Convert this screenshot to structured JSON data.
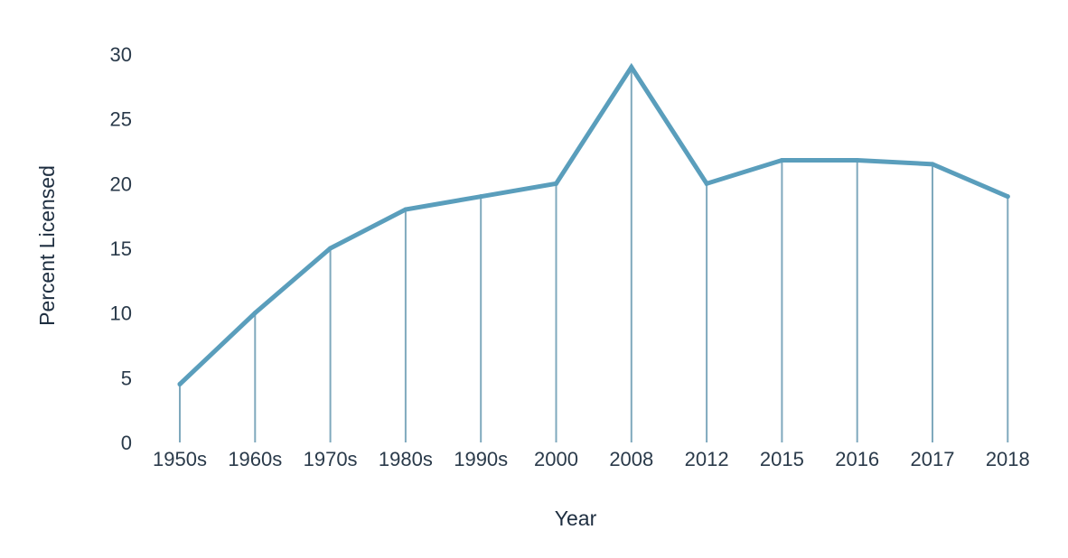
{
  "chart_data": {
    "type": "line",
    "title": "",
    "xlabel": "Year",
    "ylabel": "Percent Licensed",
    "ylim": [
      0,
      30
    ],
    "yticks": [
      0,
      5,
      10,
      15,
      20,
      25,
      30
    ],
    "categories": [
      "1950s",
      "1960s",
      "1970s",
      "1980s",
      "1990s",
      "2000",
      "2008",
      "2012",
      "2015",
      "2016",
      "2017",
      "2018"
    ],
    "series": [
      {
        "values": [
          4.5,
          10,
          15,
          18,
          19,
          20,
          29,
          20,
          21.8,
          21.8,
          21.5,
          19
        ]
      }
    ],
    "drop_lines": true,
    "grid": false,
    "legend": "none",
    "colors": {
      "line": "#5a9ebc",
      "drop_line": "#7fa9bd",
      "text": "#2a3a4a"
    }
  }
}
